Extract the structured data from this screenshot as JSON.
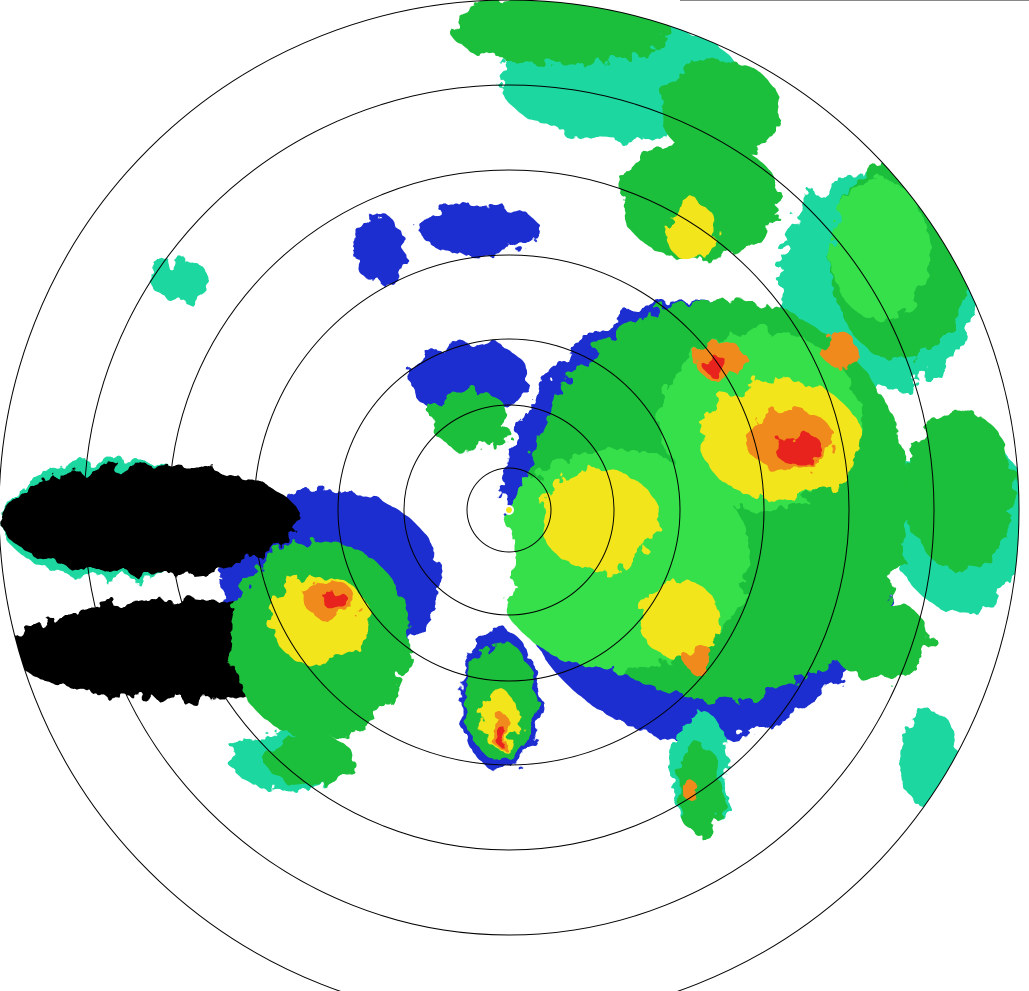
{
  "radar": {
    "type": "reflectivity-ppi",
    "range_rings": 7,
    "ring_color": "#000000",
    "background": "#ffffff",
    "palette": {
      "weak": "#1f2fd0",
      "light": "#1fd7a0",
      "moderate": "#1fbf3a",
      "bright_green": "#34e04c",
      "heavy": "#f2e51a",
      "intense": "#f08a1a",
      "extreme": "#e8221a"
    }
  }
}
